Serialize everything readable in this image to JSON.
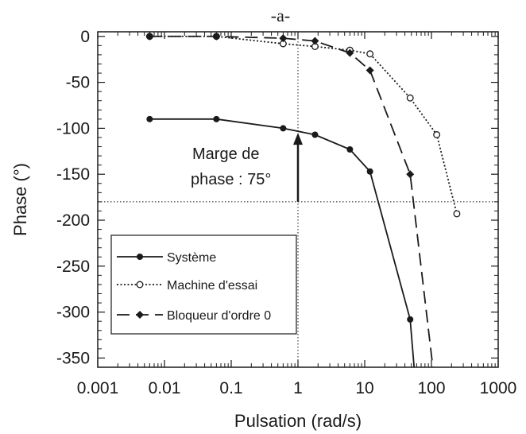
{
  "chart_data": {
    "type": "line",
    "title": "-a-",
    "xlabel": "Pulsation (rad/s)",
    "ylabel": "Phase (°)",
    "xscale": "log",
    "xlim": [
      0.001,
      1000
    ],
    "ylim": [
      -360,
      5
    ],
    "x_ticks": [
      0.001,
      0.01,
      0.1,
      1,
      10,
      100,
      1000
    ],
    "x_tick_labels": [
      "0.001",
      "0.01",
      "0.1",
      "1",
      "10",
      "100",
      "1000"
    ],
    "y_ticks": [
      0,
      -50,
      -100,
      -150,
      -200,
      -250,
      -300,
      -350
    ],
    "y_tick_labels": [
      "0",
      "-50",
      "-100",
      "-150",
      "-200",
      "-250",
      "-300",
      "-350"
    ],
    "legend_position": "bottom-left",
    "series": [
      {
        "name": "Système",
        "color": "#1a1a1a",
        "line_style": "solid",
        "marker": "filled-circle",
        "x": [
          0.006,
          0.06,
          0.6,
          1.8,
          6,
          12,
          48
        ],
        "y": [
          -90,
          -90,
          -100,
          -107,
          -123,
          -147,
          -308
        ],
        "extend_to": [
          55,
          -360
        ]
      },
      {
        "name": "Machine d'essai",
        "color": "#1a1a1a",
        "line_style": "dotted",
        "marker": "open-circle",
        "x": [
          0.006,
          0.06,
          0.6,
          1.8,
          6,
          12,
          48,
          120,
          240
        ],
        "y": [
          0,
          0,
          -8,
          -11,
          -15,
          -19,
          -67,
          -107,
          -193
        ]
      },
      {
        "name": "Bloqueur d'ordre 0",
        "color": "#1a1a1a",
        "line_style": "dashed",
        "marker": "filled-diamond",
        "x": [
          0.006,
          0.06,
          0.6,
          1.8,
          6,
          12,
          48
        ],
        "y": [
          0,
          0,
          -2,
          -5,
          -18,
          -37,
          -150
        ],
        "extend_to": [
          105,
          -360
        ]
      }
    ],
    "reference_lines": {
      "horizontal_y": -180,
      "vertical_x": 1
    },
    "annotation": {
      "line1": "Marge de",
      "line2": "phase : 75°",
      "arrow_x": 1,
      "arrow_from_y": -180,
      "arrow_to_y": -105
    }
  }
}
